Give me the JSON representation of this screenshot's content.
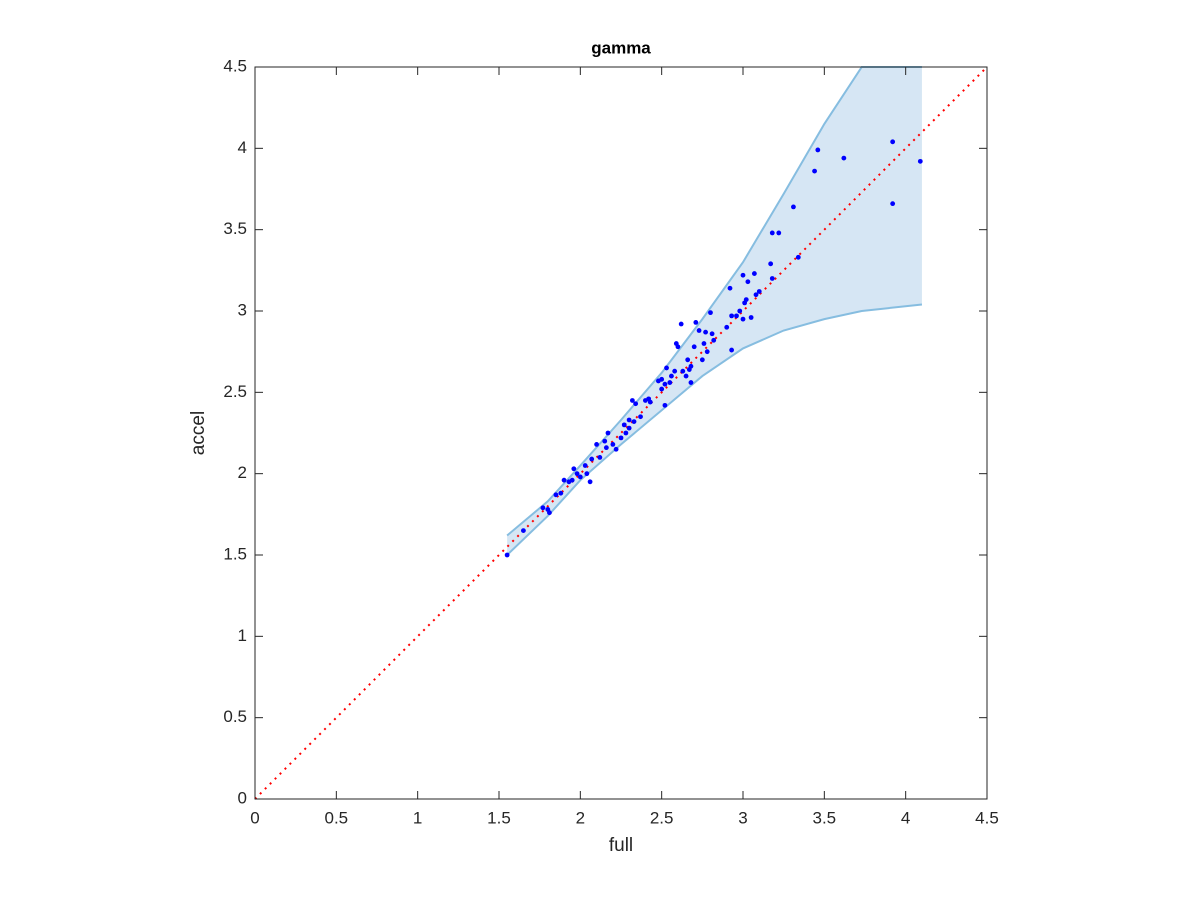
{
  "chart_data": {
    "type": "scatter",
    "title": "gamma",
    "x_label": "full",
    "y_label": "accel",
    "xlim": [
      0,
      4.5
    ],
    "ylim": [
      0,
      4.5
    ],
    "xticks": [
      0,
      0.5,
      1,
      1.5,
      2,
      2.5,
      3,
      3.5,
      4,
      4.5
    ],
    "yticks": [
      0,
      0.5,
      1,
      1.5,
      2,
      2.5,
      3,
      3.5,
      4,
      4.5
    ],
    "grid": false,
    "band": {
      "x": [
        1.55,
        1.8,
        2.0,
        2.25,
        2.5,
        2.75,
        3.0,
        3.25,
        3.5,
        3.73,
        4.1
      ],
      "upper": [
        1.62,
        1.83,
        2.05,
        2.33,
        2.62,
        2.95,
        3.3,
        3.72,
        4.15,
        4.5,
        4.5
      ],
      "lower": [
        1.5,
        1.74,
        1.96,
        2.18,
        2.39,
        2.6,
        2.77,
        2.88,
        2.95,
        3.0,
        3.04
      ],
      "color": "#d6e6f4",
      "edge_color": "#86bde0"
    },
    "reference_line": {
      "x": [
        0,
        4.5
      ],
      "y": [
        0,
        4.5
      ],
      "color": "#ff0000"
    },
    "series": [
      {
        "color": "#0000ff",
        "x": [
          1.55,
          1.65,
          1.77,
          1.8,
          1.81,
          1.85,
          1.88,
          1.9,
          1.93,
          1.95,
          1.96,
          1.98,
          2.0,
          2.03,
          2.04,
          2.06,
          2.07,
          2.1,
          2.12,
          2.15,
          2.16,
          2.17,
          2.2,
          2.22,
          2.25,
          2.27,
          2.28,
          2.3,
          2.3,
          2.33,
          2.32,
          2.34,
          2.37,
          2.4,
          2.42,
          2.43,
          2.48,
          2.5,
          2.5,
          2.52,
          2.52,
          2.53,
          2.55,
          2.56,
          2.58,
          2.59,
          2.6,
          2.62,
          2.63,
          2.65,
          2.66,
          2.67,
          2.68,
          2.68,
          2.7,
          2.71,
          2.73,
          2.75,
          2.76,
          2.77,
          2.78,
          2.8,
          2.81,
          2.82,
          2.9,
          2.92,
          2.93,
          2.93,
          2.96,
          2.98,
          3.0,
          3.0,
          3.01,
          3.02,
          3.03,
          3.05,
          3.07,
          3.08,
          3.1,
          3.17,
          3.18,
          3.18,
          3.22,
          3.31,
          3.34,
          3.44,
          3.46,
          3.62,
          3.92,
          3.92,
          4.09
        ],
        "values": [
          1.5,
          1.65,
          1.79,
          1.78,
          1.76,
          1.87,
          1.88,
          1.96,
          1.95,
          1.96,
          2.03,
          2.0,
          1.98,
          2.05,
          2.0,
          1.95,
          2.09,
          2.18,
          2.1,
          2.2,
          2.16,
          2.25,
          2.18,
          2.15,
          2.22,
          2.3,
          2.25,
          2.28,
          2.33,
          2.32,
          2.45,
          2.43,
          2.35,
          2.45,
          2.46,
          2.44,
          2.57,
          2.52,
          2.58,
          2.55,
          2.42,
          2.65,
          2.56,
          2.6,
          2.63,
          2.8,
          2.78,
          2.92,
          2.63,
          2.6,
          2.7,
          2.64,
          2.56,
          2.66,
          2.78,
          2.93,
          2.88,
          2.7,
          2.8,
          2.87,
          2.75,
          2.99,
          2.86,
          2.82,
          2.9,
          3.14,
          2.76,
          2.97,
          2.97,
          3.0,
          2.95,
          3.22,
          3.05,
          3.07,
          3.18,
          2.96,
          3.23,
          3.1,
          3.12,
          3.29,
          3.2,
          3.48,
          3.48,
          3.64,
          3.33,
          3.86,
          3.99,
          3.94,
          4.04,
          3.66,
          3.92
        ]
      }
    ]
  }
}
